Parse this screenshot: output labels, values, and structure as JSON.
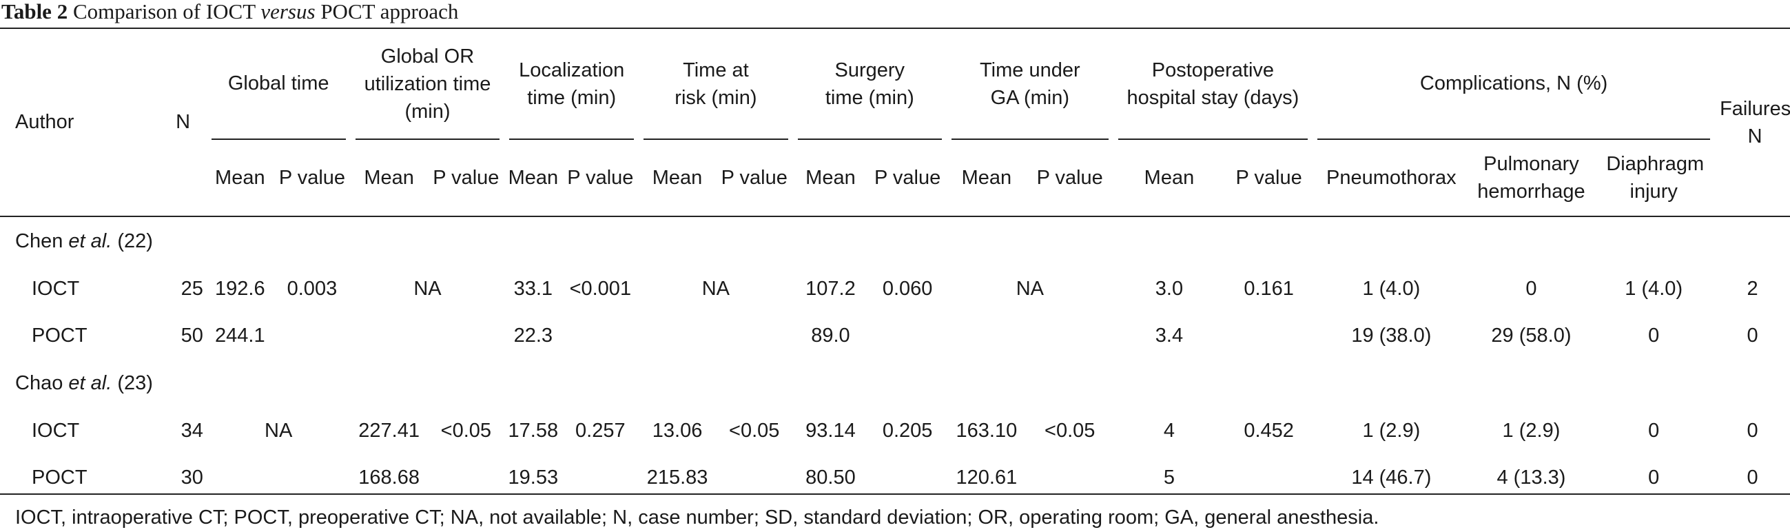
{
  "caption": {
    "label": "Table 2",
    "pre": "Comparison of IOCT",
    "italic": "versus",
    "post": "POCT approach"
  },
  "headers": {
    "author": "Author",
    "n": "N",
    "global_time": "Global time",
    "global_or": "Global OR utilization time (min)",
    "localization": "Localization time (min)",
    "time_at_risk": "Time at risk (min)",
    "surgery": "Surgery time (min)",
    "time_under_ga": "Time under GA (min)",
    "postop_stay": "Postoperative hospital stay (days)",
    "complications": "Complications, N (%)",
    "failures": "Failures, N",
    "mean": "Mean",
    "pvalue": "P value",
    "pneumothorax": "Pneumothorax",
    "pulmonary": "Pulmonary hemorrhage",
    "diaphragm": "Diaphragm injury"
  },
  "groups": [
    {
      "author": "Chen",
      "etal": "et al.",
      "ref": "(22)",
      "rows": [
        {
          "arm": "IOCT",
          "n": "25",
          "gt_mean": "192.6",
          "gt_p": "0.003",
          "or_na": "NA",
          "or_mean": "",
          "or_p": "",
          "loc_mean": "33.1",
          "loc_p": "<0.001",
          "risk_na": "NA",
          "risk_mean": "",
          "risk_p": "",
          "surg_mean": "107.2",
          "surg_p": "0.060",
          "ga_na": "NA",
          "ga_mean": "",
          "ga_p": "",
          "stay_mean": "3.0",
          "stay_p": "0.161",
          "pneumo": "1 (4.0)",
          "pulm": "0",
          "diaph": "1 (4.0)",
          "fail": "2"
        },
        {
          "arm": "POCT",
          "n": "50",
          "gt_mean": "244.1",
          "gt_p": "",
          "or_na": "",
          "or_mean": "",
          "or_p": "",
          "loc_mean": "22.3",
          "loc_p": "",
          "risk_na": "",
          "risk_mean": "",
          "risk_p": "",
          "surg_mean": "89.0",
          "surg_p": "",
          "ga_na": "",
          "ga_mean": "",
          "ga_p": "",
          "stay_mean": "3.4",
          "stay_p": "",
          "pneumo": "19 (38.0)",
          "pulm": "29 (58.0)",
          "diaph": "0",
          "fail": "0"
        }
      ]
    },
    {
      "author": "Chao",
      "etal": "et al.",
      "ref": "(23)",
      "rows": [
        {
          "arm": "IOCT",
          "n": "34",
          "gt_na": "NA",
          "or_mean": "227.41",
          "or_p": "<0.05",
          "loc_mean": "17.58",
          "loc_p": "0.257",
          "risk_mean": "13.06",
          "risk_p": "<0.05",
          "surg_mean": "93.14",
          "surg_p": "0.205",
          "ga_mean": "163.10",
          "ga_p": "<0.05",
          "stay_mean": "4",
          "stay_p": "0.452",
          "pneumo": "1 (2.9)",
          "pulm": "1 (2.9)",
          "diaph": "0",
          "fail": "0"
        },
        {
          "arm": "POCT",
          "n": "30",
          "gt_na": "",
          "or_mean": "168.68",
          "or_p": "",
          "loc_mean": "19.53",
          "loc_p": "",
          "risk_mean": "215.83",
          "risk_p": "",
          "surg_mean": "80.50",
          "surg_p": "",
          "ga_mean": "120.61",
          "ga_p": "",
          "stay_mean": "5",
          "stay_p": "",
          "pneumo": "14 (46.7)",
          "pulm": "4 (13.3)",
          "diaph": "0",
          "fail": "0"
        }
      ]
    }
  ],
  "footnote": "IOCT, intraoperative CT; POCT, preoperative CT; NA, not available; N, case number; SD, standard deviation; OR, operating room; GA, general anesthesia."
}
